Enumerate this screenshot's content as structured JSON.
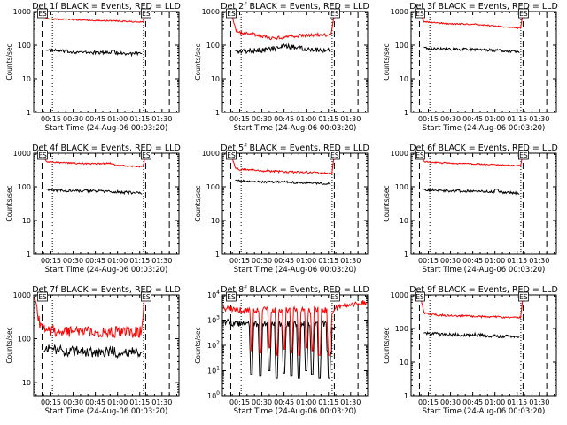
{
  "page": {
    "background": "#ffffff"
  },
  "colors": {
    "events": "#000000",
    "lld": "#ff0000",
    "axes": "#000000"
  },
  "common": {
    "xlabel": "Start Time (24-Aug-06 00:03:20)",
    "ylabel": "Counts/sec",
    "xtick_labels": [
      "00:15",
      "00:30",
      "00:45",
      "01:00",
      "01:15",
      "01:30"
    ],
    "xtick_minutes": [
      15,
      30,
      45,
      60,
      75,
      90
    ],
    "xlim_minutes": [
      3.33,
      101.5
    ],
    "marker_left_label": "ES",
    "marker_right_label": "ES"
  },
  "chart_data": [
    {
      "type": "line",
      "title": "Det 1f BLACK = Events, RED = LLD",
      "ylabel": "Counts/sec",
      "xlabel": "Start Time (24-Aug-06 00:03:20)",
      "yscale": "log",
      "ylim": [
        1,
        1000
      ],
      "ytick_labels": [
        "1",
        "10",
        "100",
        "1000"
      ],
      "dashed_lines_minutes": [
        9,
        79,
        95
      ],
      "dotted_lines_minutes": [
        16,
        77.5
      ],
      "series": [
        {
          "name": "BLACK = Events",
          "color": "#000000",
          "noise": 0.05,
          "x": [
            12,
            14,
            25,
            40,
            55,
            70,
            75,
            76.5
          ],
          "y": [
            70,
            70,
            65,
            60,
            60,
            55,
            55,
            55
          ],
          "bumps": [
            [
              56,
              58,
              70
            ]
          ]
        },
        {
          "name": "RED = LLD",
          "color": "#ff0000",
          "noise": 0.02,
          "x": [
            9.6,
            10.3,
            11.5,
            13,
            25,
            40,
            55,
            70,
            76,
            77.4,
            78.3,
            79.3
          ],
          "y": [
            1000,
            800,
            650,
            600,
            580,
            550,
            530,
            500,
            480,
            500,
            750,
            1000
          ]
        }
      ]
    },
    {
      "type": "line",
      "title": "Det 2f BLACK = Events, RED = LLD",
      "ylabel": "Counts/sec",
      "xlabel": "Start Time (24-Aug-06 00:03:20)",
      "yscale": "log",
      "ylim": [
        1,
        1000
      ],
      "ytick_labels": [
        "1",
        "10",
        "100",
        "1000"
      ],
      "dashed_lines_minutes": [
        9,
        79,
        95
      ],
      "dotted_lines_minutes": [
        16,
        77.5
      ],
      "series": [
        {
          "name": "BLACK = Events",
          "color": "#000000",
          "noise": 0.08,
          "x": [
            12,
            15,
            25,
            35,
            45,
            55,
            65,
            75,
            76.5
          ],
          "y": [
            70,
            65,
            70,
            75,
            90,
            85,
            75,
            70,
            65
          ]
        },
        {
          "name": "RED = LLD",
          "color": "#ff0000",
          "noise": 0.05,
          "x": [
            9.6,
            10.5,
            12,
            15,
            25,
            35,
            45,
            55,
            65,
            75,
            77,
            78.3,
            79.3
          ],
          "y": [
            1000,
            600,
            300,
            230,
            210,
            160,
            170,
            190,
            200,
            200,
            230,
            550,
            1000
          ]
        }
      ]
    },
    {
      "type": "line",
      "title": "Det 3f BLACK = Events, RED = LLD",
      "ylabel": "Counts/sec",
      "xlabel": "Start Time (24-Aug-06 00:03:20)",
      "yscale": "log",
      "ylim": [
        1,
        1000
      ],
      "ytick_labels": [
        "1",
        "10",
        "100",
        "1000"
      ],
      "dashed_lines_minutes": [
        9,
        79,
        95
      ],
      "dotted_lines_minutes": [
        16,
        77.5
      ],
      "series": [
        {
          "name": "BLACK = Events",
          "color": "#000000",
          "noise": 0.04,
          "x": [
            12,
            15,
            30,
            45,
            60,
            75,
            76.5
          ],
          "y": [
            90,
            80,
            75,
            75,
            70,
            65,
            60
          ]
        },
        {
          "name": "RED = LLD",
          "color": "#ff0000",
          "noise": 0.02,
          "x": [
            9.6,
            10.5,
            12,
            15,
            30,
            45,
            60,
            75,
            77.4,
            78.3,
            79.3
          ],
          "y": [
            1000,
            700,
            500,
            480,
            430,
            420,
            370,
            320,
            330,
            600,
            1000
          ]
        }
      ]
    },
    {
      "type": "line",
      "title": "Det 4f BLACK = Events, RED = LLD",
      "ylabel": "Counts/sec",
      "xlabel": "Start Time (24-Aug-06 00:03:20)",
      "yscale": "log",
      "ylim": [
        1,
        1000
      ],
      "ytick_labels": [
        "1",
        "10",
        "100",
        "1000"
      ],
      "dashed_lines_minutes": [
        9,
        79,
        95
      ],
      "dotted_lines_minutes": [
        16,
        77.5
      ],
      "series": [
        {
          "name": "BLACK = Events",
          "color": "#000000",
          "noise": 0.04,
          "x": [
            12,
            15,
            30,
            45,
            60,
            75,
            76.5
          ],
          "y": [
            85,
            80,
            75,
            75,
            70,
            65,
            60
          ]
        },
        {
          "name": "RED = LLD",
          "color": "#ff0000",
          "noise": 0.02,
          "x": [
            9.6,
            10.5,
            12,
            15,
            30,
            45,
            55,
            60,
            75,
            77.4,
            78.3,
            79.3
          ],
          "y": [
            1000,
            750,
            560,
            540,
            500,
            480,
            500,
            430,
            400,
            420,
            700,
            1000
          ]
        }
      ]
    },
    {
      "type": "line",
      "title": "Det 5f BLACK = Events, RED = LLD",
      "ylabel": "Counts/sec",
      "xlabel": "Start Time (24-Aug-06 00:03:20)",
      "yscale": "log",
      "ylim": [
        1,
        1000
      ],
      "ytick_labels": [
        "1",
        "10",
        "100",
        "1000"
      ],
      "dashed_lines_minutes": [
        9,
        79,
        95
      ],
      "dotted_lines_minutes": [
        16,
        77.5
      ],
      "series": [
        {
          "name": "BLACK = Events",
          "color": "#000000",
          "noise": 0.03,
          "x": [
            12,
            15,
            30,
            45,
            60,
            75,
            76.5
          ],
          "y": [
            160,
            150,
            140,
            140,
            130,
            125,
            120
          ]
        },
        {
          "name": "RED = LLD",
          "color": "#ff0000",
          "noise": 0.03,
          "x": [
            9.6,
            10.5,
            12,
            15,
            30,
            45,
            60,
            75,
            77.4,
            78.3,
            79.3
          ],
          "y": [
            1000,
            600,
            350,
            330,
            300,
            280,
            270,
            250,
            260,
            550,
            1000
          ]
        }
      ]
    },
    {
      "type": "line",
      "title": "Det 6f BLACK = Events, RED = LLD",
      "ylabel": "Counts/sec",
      "xlabel": "Start Time (24-Aug-06 00:03:20)",
      "yscale": "log",
      "ylim": [
        1,
        1000
      ],
      "ytick_labels": [
        "1",
        "10",
        "100",
        "1000"
      ],
      "dashed_lines_minutes": [
        9,
        79,
        95
      ],
      "dotted_lines_minutes": [
        16,
        77.5
      ],
      "series": [
        {
          "name": "BLACK = Events",
          "color": "#000000",
          "noise": 0.04,
          "x": [
            12,
            15,
            30,
            45,
            60,
            75,
            76.5
          ],
          "y": [
            85,
            80,
            75,
            75,
            70,
            65,
            60
          ],
          "bumps": [
            [
              60,
              62,
              85
            ]
          ]
        },
        {
          "name": "RED = LLD",
          "color": "#ff0000",
          "noise": 0.02,
          "x": [
            9.6,
            10.5,
            12,
            15,
            30,
            45,
            60,
            75,
            77.4,
            78.3,
            79.3
          ],
          "y": [
            1000,
            750,
            560,
            540,
            500,
            480,
            460,
            420,
            420,
            700,
            1000
          ]
        }
      ]
    },
    {
      "type": "line",
      "title": "Det 7f BLACK = Events, RED = LLD",
      "ylabel": "Counts/sec",
      "xlabel": "Start Time (24-Aug-06 00:03:20)",
      "yscale": "log",
      "ylim": [
        5,
        1000
      ],
      "ytick_labels": [
        "10",
        "100",
        "1000"
      ],
      "dashed_lines_minutes": [
        9,
        79,
        95
      ],
      "dotted_lines_minutes": [
        16,
        77.5
      ],
      "series": [
        {
          "name": "BLACK = Events",
          "color": "#000000",
          "noise": 0.13,
          "x": [
            10,
            15,
            30,
            45,
            60,
            75,
            76.5
          ],
          "y": [
            55,
            55,
            50,
            50,
            50,
            48,
            45
          ]
        },
        {
          "name": "RED = LLD",
          "color": "#ff0000",
          "noise": 0.13,
          "x": [
            4,
            5,
            6.5,
            8,
            12,
            20,
            40,
            60,
            75,
            76.6,
            77.4,
            78.2
          ],
          "y": [
            1000,
            600,
            300,
            200,
            160,
            150,
            140,
            140,
            140,
            180,
            400,
            1000
          ]
        }
      ]
    },
    {
      "type": "line",
      "title": "Det 8f BLACK = Events, RED = LLD",
      "ylabel": "Counts/sec",
      "xlabel": "Start Time (24-Aug-06 00:03:20)",
      "yscale": "log",
      "ylim": [
        1,
        10000
      ],
      "ytick_labels": [
        "10^0",
        "10^1",
        "10^2",
        "10^3",
        "10^4"
      ],
      "dashed_lines_minutes": [
        9,
        79,
        95
      ],
      "dotted_lines_minutes": [
        16,
        77.5
      ],
      "series": [
        {
          "name": "BLACK = Events",
          "color": "#000000",
          "noise": 0.12,
          "x": [
            4,
            12,
            20,
            40,
            60,
            75,
            78,
            80
          ],
          "y": [
            900,
            700,
            700,
            700,
            700,
            700,
            500,
            500
          ],
          "dips": [
            [
              22,
              24,
              7
            ],
            [
              28,
              30,
              6
            ],
            [
              34,
              36,
              10
            ],
            [
              39,
              41,
              5
            ],
            [
              44,
              46,
              8
            ],
            [
              49,
              51,
              6
            ],
            [
              54,
              56,
              5
            ],
            [
              59,
              61,
              10
            ],
            [
              63,
              65,
              7
            ],
            [
              68,
              70,
              5
            ],
            [
              74,
              77,
              5
            ]
          ]
        },
        {
          "name": "RED = LLD",
          "color": "#ff0000",
          "noise": 0.12,
          "x": [
            3.4,
            5,
            15,
            20,
            40,
            60,
            75,
            78,
            80,
            85,
            90,
            95,
            100,
            101.4
          ],
          "y": [
            4000,
            3000,
            2500,
            2500,
            2500,
            2500,
            2500,
            2000,
            3000,
            3500,
            4000,
            5000,
            5000,
            5000
          ],
          "dips": [
            [
              22,
              24,
              60
            ],
            [
              28,
              30,
              50
            ],
            [
              34,
              36,
              80
            ],
            [
              39,
              41,
              40
            ],
            [
              44,
              46,
              70
            ],
            [
              49,
              51,
              50
            ],
            [
              54,
              56,
              40
            ],
            [
              59,
              61,
              80
            ],
            [
              63,
              65,
              60
            ],
            [
              68,
              70,
              40
            ],
            [
              74,
              77,
              40
            ]
          ]
        }
      ]
    },
    {
      "type": "line",
      "title": "Det 9f BLACK = Events, RED = LLD",
      "ylabel": "Counts/sec",
      "xlabel": "Start Time (24-Aug-06 00:03:20)",
      "yscale": "log",
      "ylim": [
        1,
        1000
      ],
      "ytick_labels": [
        "1",
        "10",
        "100",
        "1000"
      ],
      "dashed_lines_minutes": [
        9,
        79,
        95
      ],
      "dotted_lines_minutes": [
        16,
        77.5
      ],
      "series": [
        {
          "name": "BLACK = Events",
          "color": "#000000",
          "noise": 0.05,
          "x": [
            12,
            15,
            30,
            45,
            60,
            75,
            76.5
          ],
          "y": [
            75,
            70,
            65,
            65,
            60,
            55,
            55
          ]
        },
        {
          "name": "RED = LLD",
          "color": "#ff0000",
          "noise": 0.03,
          "x": [
            9.6,
            10.5,
            12,
            15,
            30,
            45,
            60,
            75,
            77.4,
            78.3,
            79.3
          ],
          "y": [
            1000,
            600,
            300,
            260,
            240,
            230,
            220,
            210,
            220,
            500,
            1000
          ]
        }
      ]
    }
  ]
}
